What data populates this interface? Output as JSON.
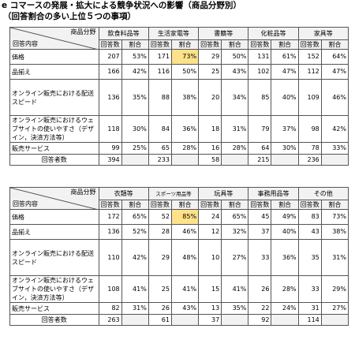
{
  "title": "e コマースの発展・拡大による競争状況への影響（商品分野別）",
  "subtitle": "（回答割合の多い上位５つの事項）",
  "corner_top": "商品分野",
  "corner_bottom": "回答内容",
  "col_count": "回答数",
  "col_ratio": "割合",
  "respondents_label": "回答者数",
  "tables": [
    {
      "categories": [
        "飲食料品等",
        "生活家電等",
        "書籍等",
        "化粧品等",
        "家具等"
      ],
      "rows": [
        {
          "label": "価格",
          "cells": [
            [
              "207",
              "53%"
            ],
            [
              "171",
              "73%"
            ],
            [
              "29",
              "50%"
            ],
            [
              "131",
              "61%"
            ],
            [
              "152",
              "64%"
            ]
          ]
        },
        {
          "label": "品揃え",
          "cells": [
            [
              "166",
              "42%"
            ],
            [
              "116",
              "50%"
            ],
            [
              "25",
              "43%"
            ],
            [
              "102",
              "47%"
            ],
            [
              "112",
              "47%"
            ]
          ]
        },
        {
          "label": "オンライン販売における配送スピード",
          "cells": [
            [
              "136",
              "35%"
            ],
            [
              "88",
              "38%"
            ],
            [
              "20",
              "34%"
            ],
            [
              "85",
              "40%"
            ],
            [
              "109",
              "46%"
            ]
          ]
        },
        {
          "label": "オンライン販売におけるウェブサイトの使いやすさ（デザイン，決済方法等）",
          "cells": [
            [
              "118",
              "30%"
            ],
            [
              "84",
              "36%"
            ],
            [
              "18",
              "31%"
            ],
            [
              "79",
              "37%"
            ],
            [
              "98",
              "42%"
            ]
          ]
        },
        {
          "label": "販売サービス",
          "cells": [
            [
              "99",
              "25%"
            ],
            [
              "65",
              "28%"
            ],
            [
              "16",
              "28%"
            ],
            [
              "64",
              "30%"
            ],
            [
              "78",
              "33%"
            ]
          ]
        }
      ],
      "respondents": [
        "394",
        "233",
        "58",
        "215",
        "236"
      ]
    },
    {
      "categories": [
        "衣類等",
        "スポーツ用品等",
        "玩具等",
        "事務用品等",
        "その他"
      ],
      "rows": [
        {
          "label": "価格",
          "cells": [
            [
              "172",
              "65%"
            ],
            [
              "52",
              "85%"
            ],
            [
              "24",
              "65%"
            ],
            [
              "45",
              "49%"
            ],
            [
              "83",
              "73%"
            ]
          ]
        },
        {
          "label": "品揃え",
          "cells": [
            [
              "136",
              "52%"
            ],
            [
              "28",
              "46%"
            ],
            [
              "12",
              "32%"
            ],
            [
              "37",
              "40%"
            ],
            [
              "43",
              "38%"
            ]
          ]
        },
        {
          "label": "オンライン販売における配送スピード",
          "cells": [
            [
              "110",
              "42%"
            ],
            [
              "29",
              "48%"
            ],
            [
              "10",
              "27%"
            ],
            [
              "33",
              "36%"
            ],
            [
              "35",
              "31%"
            ]
          ]
        },
        {
          "label": "オンライン販売におけるウェブサイトの使いやすさ（デザイン，決済方法等）",
          "cells": [
            [
              "108",
              "41%"
            ],
            [
              "25",
              "41%"
            ],
            [
              "15",
              "41%"
            ],
            [
              "26",
              "28%"
            ],
            [
              "33",
              "29%"
            ]
          ]
        },
        {
          "label": "販売サービス",
          "cells": [
            [
              "82",
              "31%"
            ],
            [
              "26",
              "43%"
            ],
            [
              "13",
              "35%"
            ],
            [
              "22",
              "24%"
            ],
            [
              "31",
              "27%"
            ]
          ]
        }
      ],
      "respondents": [
        "263",
        "61",
        "37",
        "92",
        "114"
      ]
    }
  ],
  "highlight_color": "#fde28a"
}
